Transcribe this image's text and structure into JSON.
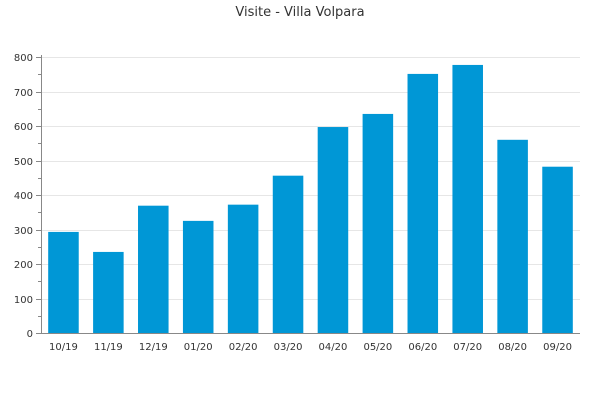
{
  "chart_data": {
    "type": "bar",
    "title": "Visite - Villa Volpara",
    "xlabel": "",
    "ylabel": "",
    "categories": [
      "10/19",
      "11/19",
      "12/19",
      "01/20",
      "02/20",
      "03/20",
      "04/20",
      "05/20",
      "06/20",
      "07/20",
      "08/20",
      "09/20"
    ],
    "values": [
      293,
      235,
      369,
      325,
      372,
      456,
      597,
      635,
      751,
      777,
      560,
      482
    ],
    "ylim": [
      0,
      800
    ],
    "yticks": [
      0,
      100,
      200,
      300,
      400,
      500,
      600,
      700,
      800
    ],
    "grid": true,
    "legend": false,
    "bar_color": "#0097d6"
  }
}
